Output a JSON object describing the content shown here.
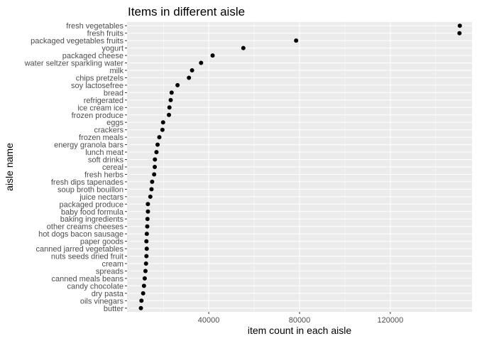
{
  "chart_data": {
    "type": "scatter",
    "title": "Items in different aisle",
    "xlabel": "item count in each aisle",
    "ylabel": "aisle name",
    "xlim": [
      4000,
      156000
    ],
    "xticks": [
      40000,
      80000,
      120000
    ],
    "xtick_labels": [
      "40000",
      "80000",
      "120000"
    ],
    "grid": true,
    "legend": "none",
    "colors": {
      "panel": "#ebebeb",
      "grid": "#ffffff",
      "point": "#000000",
      "tick_text": "#4d4d4d"
    },
    "categories": [
      "fresh vegetables",
      "fresh fruits",
      "packaged vegetables fruits",
      "yogurt",
      "packaged cheese",
      "water seltzer sparkling water",
      "milk",
      "chips pretzels",
      "soy lactosefree",
      "bread",
      "refrigerated",
      "ice cream ice",
      "frozen produce",
      "eggs",
      "crackers",
      "frozen meals",
      "energy granola bars",
      "lunch meat",
      "soft drinks",
      "cereal",
      "fresh herbs",
      "fresh dips tapenades",
      "soup broth bouillon",
      "juice nectars",
      "packaged produce",
      "baby food formula",
      "baking ingredients",
      "other creams cheeses",
      "hot dogs bacon sausage",
      "paper goods",
      "canned jarred vegetables",
      "nuts seeds dried fruit",
      "cream",
      "spreads",
      "canned meals beans",
      "candy chocolate",
      "dry pasta",
      "oils vinegars",
      "butter"
    ],
    "values": [
      150609,
      150473,
      78493,
      55240,
      41699,
      36617,
      32644,
      31269,
      26240,
      23635,
      23228,
      22676,
      22454,
      19875,
      19592,
      18221,
      17449,
      16957,
      16279,
      16201,
      15934,
      15051,
      14774,
      14253,
      13181,
      13198,
      12992,
      12897,
      12709,
      12536,
      12679,
      12532,
      12356,
      12102,
      11774,
      11453,
      11088,
      10350,
      10102
    ]
  }
}
